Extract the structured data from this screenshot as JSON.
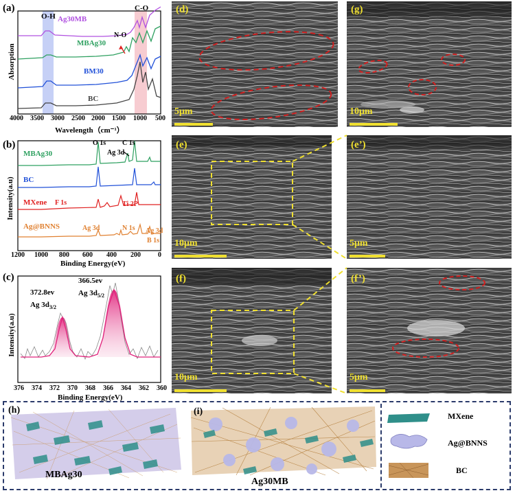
{
  "panels": {
    "a": {
      "label": "(a)",
      "xlabel": "Wavelength（cm⁻¹）",
      "ylabel": "Absorption",
      "ticks": [
        "4000",
        "3500",
        "3000",
        "2500",
        "2000",
        "1500",
        "1000",
        "500"
      ],
      "band_labels": [
        "O-H",
        "C-O"
      ],
      "annotation": "N-O",
      "series": [
        "Ag30MB",
        "MBAg30",
        "BM30",
        "BC"
      ],
      "colors": {
        "Ag30MB": "#b050e0",
        "MBAg30": "#2ea060",
        "BM30": "#2050d8",
        "BC": "#444444"
      }
    },
    "b": {
      "label": "(b)",
      "xlabel": "Binding Energy(eV)",
      "ylabel": "Intensity(a.u)",
      "ticks": [
        "1200",
        "1000",
        "800",
        "600",
        "400",
        "200",
        "0"
      ],
      "series": [
        "MBAg30",
        "BC",
        "MXene",
        "Ag@BNNS"
      ],
      "peaks": [
        "O 1s",
        "C 1s",
        "Ag 3d",
        "F 1s",
        "Ti 2P",
        "Ag 3d",
        "N 1s",
        "Ag 3d",
        "B 1s"
      ],
      "colors": {
        "MBAg30": "#2ea060",
        "BC": "#2050d8",
        "MXene": "#e02020",
        "Ag@BNNS": "#e08030"
      }
    },
    "c": {
      "label": "(c)",
      "xlabel": "Binding Energy(eV)",
      "ylabel": "Intensity(a.u)",
      "ticks": [
        "376",
        "374",
        "372",
        "370",
        "368",
        "366",
        "364",
        "362",
        "360"
      ],
      "peak1": {
        "energy": "372.8ev",
        "name": "Ag 3d",
        "sub": "3/2"
      },
      "peak2": {
        "energy": "366.5ev",
        "name": "Ag 3d",
        "sub": "5/2"
      },
      "color": "#e0207a"
    },
    "d": {
      "label": "(d)",
      "scale": "5μm"
    },
    "g": {
      "label": "(g)",
      "scale": "10μm"
    },
    "e": {
      "label": "(e)",
      "scale": "10μm"
    },
    "e2": {
      "label": "(e’)",
      "scale": "5μm"
    },
    "f": {
      "label": "(f)",
      "scale": "10μm"
    },
    "f2": {
      "label": "(f’)",
      "scale": "5μm"
    },
    "h": {
      "label": "(h)",
      "caption": "MBAg30"
    },
    "i": {
      "label": "(i)",
      "caption": "Ag30MB"
    }
  },
  "legend": [
    {
      "name": "MXene",
      "color": "#2f8f8a"
    },
    {
      "name": "Ag@BNNS",
      "color": "#b8b8e8"
    },
    {
      "name": "BC",
      "color": "#c8955a"
    }
  ]
}
